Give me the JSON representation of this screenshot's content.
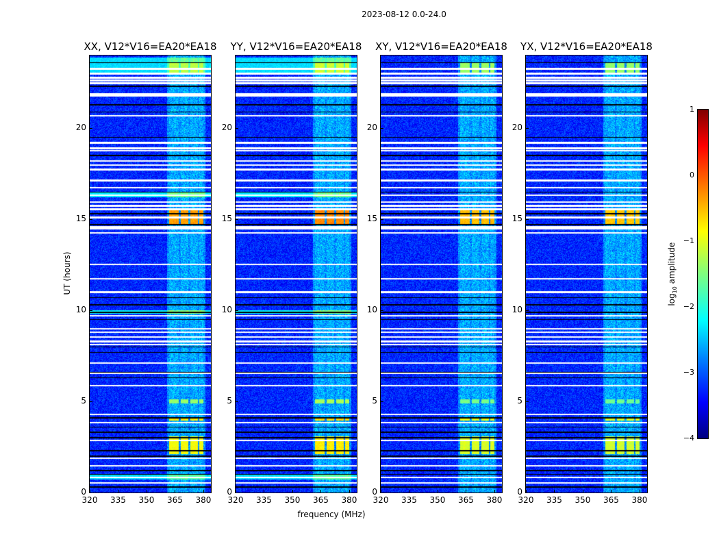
{
  "suptitle": "2023-08-12 0.0-24.0",
  "chart_data": {
    "type": "heatmap",
    "panels": [
      {
        "title": "XX, V12*V16=EA20*EA18",
        "gain": 0,
        "cyan_bands": true
      },
      {
        "title": "YY, V12*V16=EA20*EA18",
        "gain": 0.1,
        "cyan_bands": true
      },
      {
        "title": "XY, V12*V16=EA20*EA18",
        "gain": -0.15,
        "cyan_bands": false
      },
      {
        "title": "YX, V12*V16=EA20*EA18",
        "gain": -0.2,
        "cyan_bands": false
      }
    ],
    "xlabel": "frequency (MHz)",
    "ylabel": "UT (hours)",
    "xlim": [
      320,
      384
    ],
    "ylim": [
      0,
      24
    ],
    "xticks": [
      "320",
      "335",
      "350",
      "365",
      "380"
    ],
    "xtick_values": [
      320,
      335,
      350,
      365,
      380
    ],
    "yticks": [
      "0",
      "5",
      "10",
      "15",
      "20"
    ],
    "ytick_values": [
      0,
      5,
      10,
      15,
      20
    ],
    "colorbar": {
      "label_prefix": "log",
      "label_sub": "10",
      "label_suffix": " amplitude",
      "ticks": [
        "1",
        "0",
        "−1",
        "−2",
        "−3",
        "−4"
      ],
      "tick_values": [
        1,
        0,
        -1,
        -2,
        -3,
        -4
      ],
      "range": [
        -4,
        1
      ],
      "colormap": "jet"
    },
    "background_level": -3.2,
    "rfi_band_mhz": [
      [
        362,
        367
      ],
      [
        368,
        372
      ],
      [
        373,
        377
      ],
      [
        378,
        380
      ]
    ],
    "rfi_events": [
      {
        "hours": [
          14.7,
          15.6
        ],
        "level": -0.4
      },
      {
        "hours": [
          2.1,
          3.1
        ],
        "level": -0.9
      },
      {
        "hours": [
          3.95,
          4.1
        ],
        "level": -0.8
      },
      {
        "hours": [
          4.9,
          5.1
        ],
        "level": -1.4
      },
      {
        "hours": [
          23.0,
          23.6
        ],
        "level": -1.2
      }
    ],
    "broadband_events": [
      {
        "hours": [
          23.0,
          23.9
        ],
        "level": -2.3
      },
      {
        "hours": [
          16.2,
          16.5
        ],
        "level": -2.2
      },
      {
        "hours": [
          9.8,
          10.0
        ],
        "level": -2.1
      },
      {
        "hours": [
          0.7,
          1.0
        ],
        "level": -2.3
      }
    ],
    "flagged_hours": [
      23.27,
      23.0,
      22.78,
      22.63,
      22.48,
      21.88,
      21.8,
      20.68,
      19.2,
      18.9,
      18.76,
      18.2,
      17.97,
      17.74,
      17.14,
      16.73,
      16.32,
      15.94,
      15.75,
      15.56,
      15.11,
      14.6,
      14.5,
      14.25,
      12.52,
      11.73,
      11.0,
      9.7,
      8.98,
      8.8,
      8.53,
      8.3,
      8.12,
      7.1,
      6.54,
      5.86,
      4.29,
      3.83,
      2.86,
      1.88,
      1.47,
      0.83,
      0.53
    ],
    "dropout_hours": [
      23.6,
      22.3,
      21.3,
      20.9,
      19.5,
      18.5,
      16.5,
      15.3,
      14.7,
      10.7,
      10.3,
      9.9,
      9.5,
      8.0,
      7.7,
      6.6,
      6.3,
      4.1,
      3.6,
      3.3,
      3.0,
      2.3,
      2.0,
      1.2,
      1.0,
      0.3
    ]
  }
}
